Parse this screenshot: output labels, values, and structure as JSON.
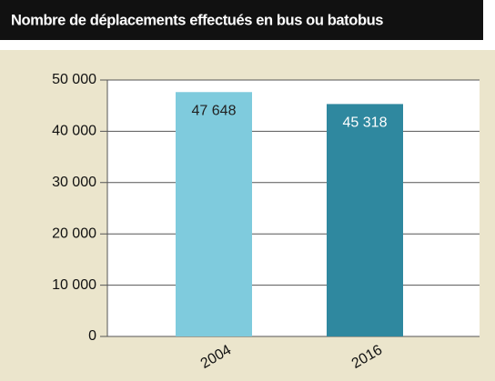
{
  "chart_data": {
    "type": "bar",
    "title": "Nombre de déplacements effectués en bus ou batobus",
    "categories": [
      "2004",
      "2016"
    ],
    "values": [
      47648,
      45318
    ],
    "value_labels": [
      "47 648",
      "45 318"
    ],
    "colors": [
      "#7fcbdd",
      "#2f889f"
    ],
    "label_colors": [
      "#222222",
      "#ffffff"
    ],
    "ylim": [
      0,
      50000
    ],
    "yticks": [
      0,
      {
        "value": 10000,
        "label": "10 000"
      },
      {
        "value": 20000,
        "label": "20 000"
      },
      {
        "value": 30000,
        "label": "30 000"
      },
      {
        "value": 40000,
        "label": "40 000"
      },
      {
        "value": 50000,
        "label": "50 000"
      }
    ],
    "grid": true
  }
}
